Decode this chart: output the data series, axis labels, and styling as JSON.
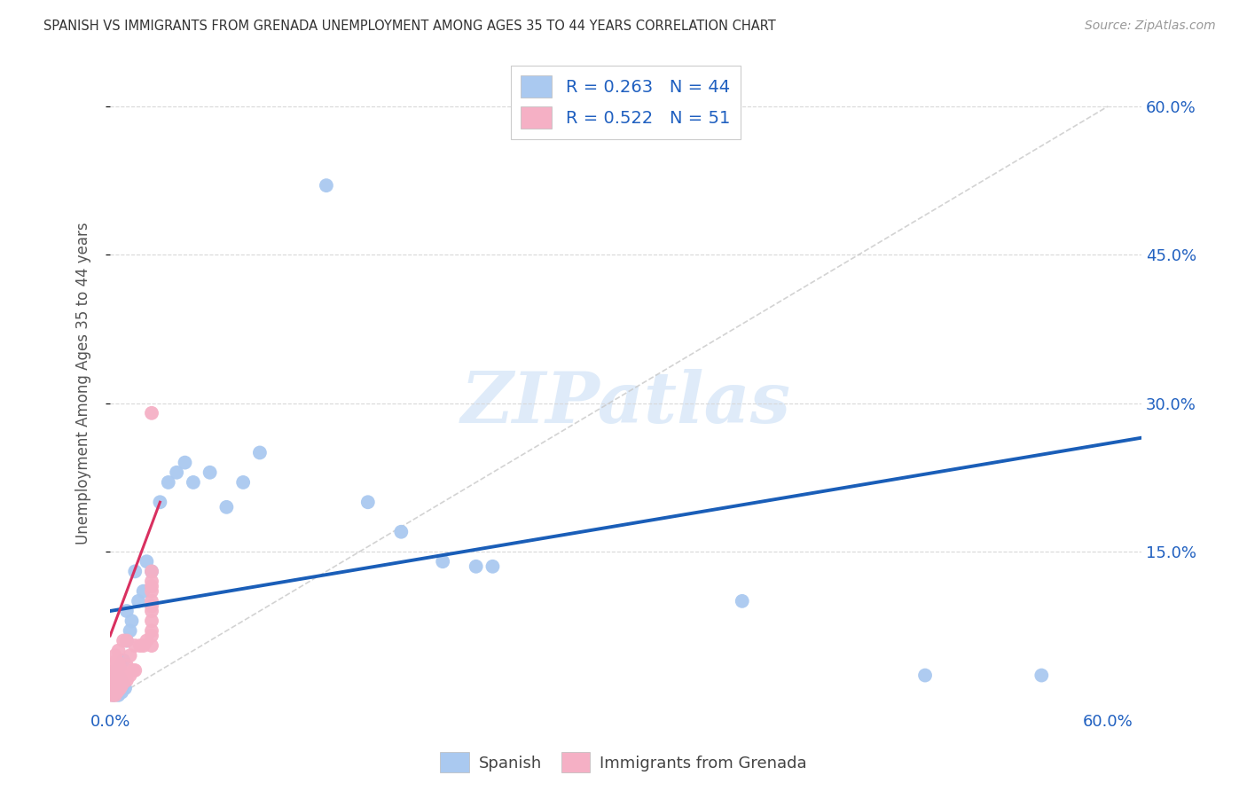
{
  "title": "SPANISH VS IMMIGRANTS FROM GRENADA UNEMPLOYMENT AMONG AGES 35 TO 44 YEARS CORRELATION CHART",
  "source": "Source: ZipAtlas.com",
  "ylabel": "Unemployment Among Ages 35 to 44 years",
  "xlim": [
    0.0,
    0.62
  ],
  "ylim": [
    -0.01,
    0.65
  ],
  "watermark_text": "ZIPatlas",
  "spanish_color": "#aac9f0",
  "grenada_color": "#f5b0c5",
  "trend_spanish_color": "#1a5eb8",
  "trend_grenada_color": "#d93060",
  "diagonal_color": "#c8c8c8",
  "grid_color": "#d8d8d8",
  "R_spanish": "0.263",
  "N_spanish": "44",
  "R_grenada": "0.522",
  "N_grenada": "51",
  "legend_label_spanish": "Spanish",
  "legend_label_grenada": "Immigrants from Grenada",
  "background_color": "#ffffff",
  "tick_color": "#2060c0",
  "title_color": "#333333",
  "source_color": "#999999",
  "ylabel_color": "#555555",
  "spanish_x": [
    0.001,
    0.001,
    0.002,
    0.002,
    0.003,
    0.003,
    0.003,
    0.004,
    0.004,
    0.005,
    0.005,
    0.006,
    0.006,
    0.007,
    0.008,
    0.008,
    0.009,
    0.01,
    0.01,
    0.012,
    0.013,
    0.015,
    0.017,
    0.02,
    0.022,
    0.025,
    0.03,
    0.035,
    0.04,
    0.045,
    0.05,
    0.06,
    0.07,
    0.08,
    0.09,
    0.13,
    0.155,
    0.175,
    0.2,
    0.22,
    0.23,
    0.38,
    0.49,
    0.56
  ],
  "spanish_y": [
    0.01,
    0.02,
    0.005,
    0.015,
    0.008,
    0.018,
    0.025,
    0.01,
    0.03,
    0.005,
    0.012,
    0.022,
    0.035,
    0.008,
    0.015,
    0.04,
    0.012,
    0.06,
    0.09,
    0.07,
    0.08,
    0.13,
    0.1,
    0.11,
    0.14,
    0.13,
    0.2,
    0.22,
    0.23,
    0.24,
    0.22,
    0.23,
    0.195,
    0.22,
    0.25,
    0.52,
    0.2,
    0.17,
    0.14,
    0.135,
    0.135,
    0.1,
    0.025,
    0.025
  ],
  "grenada_x": [
    0.001,
    0.001,
    0.001,
    0.002,
    0.002,
    0.002,
    0.002,
    0.003,
    0.003,
    0.003,
    0.003,
    0.003,
    0.004,
    0.004,
    0.004,
    0.004,
    0.005,
    0.005,
    0.005,
    0.005,
    0.005,
    0.006,
    0.006,
    0.006,
    0.007,
    0.007,
    0.008,
    0.008,
    0.01,
    0.01,
    0.01,
    0.012,
    0.012,
    0.014,
    0.015,
    0.015,
    0.018,
    0.02,
    0.022,
    0.025,
    0.025,
    0.025,
    0.025,
    0.025,
    0.025,
    0.025,
    0.025,
    0.025,
    0.025,
    0.025,
    0.025
  ],
  "grenada_y": [
    0.005,
    0.01,
    0.018,
    0.008,
    0.015,
    0.025,
    0.035,
    0.005,
    0.012,
    0.02,
    0.03,
    0.045,
    0.008,
    0.015,
    0.022,
    0.04,
    0.01,
    0.018,
    0.028,
    0.038,
    0.05,
    0.012,
    0.022,
    0.032,
    0.015,
    0.025,
    0.018,
    0.06,
    0.02,
    0.035,
    0.06,
    0.025,
    0.045,
    0.03,
    0.03,
    0.055,
    0.055,
    0.055,
    0.06,
    0.08,
    0.09,
    0.1,
    0.11,
    0.115,
    0.12,
    0.13,
    0.07,
    0.065,
    0.055,
    0.095,
    0.29
  ],
  "sp_trend_x0": 0.0,
  "sp_trend_y0": 0.09,
  "sp_trend_x1": 0.62,
  "sp_trend_y1": 0.265,
  "gr_trend_x0": 0.0,
  "gr_trend_y0": 0.065,
  "gr_trend_x1": 0.03,
  "gr_trend_y1": 0.2
}
